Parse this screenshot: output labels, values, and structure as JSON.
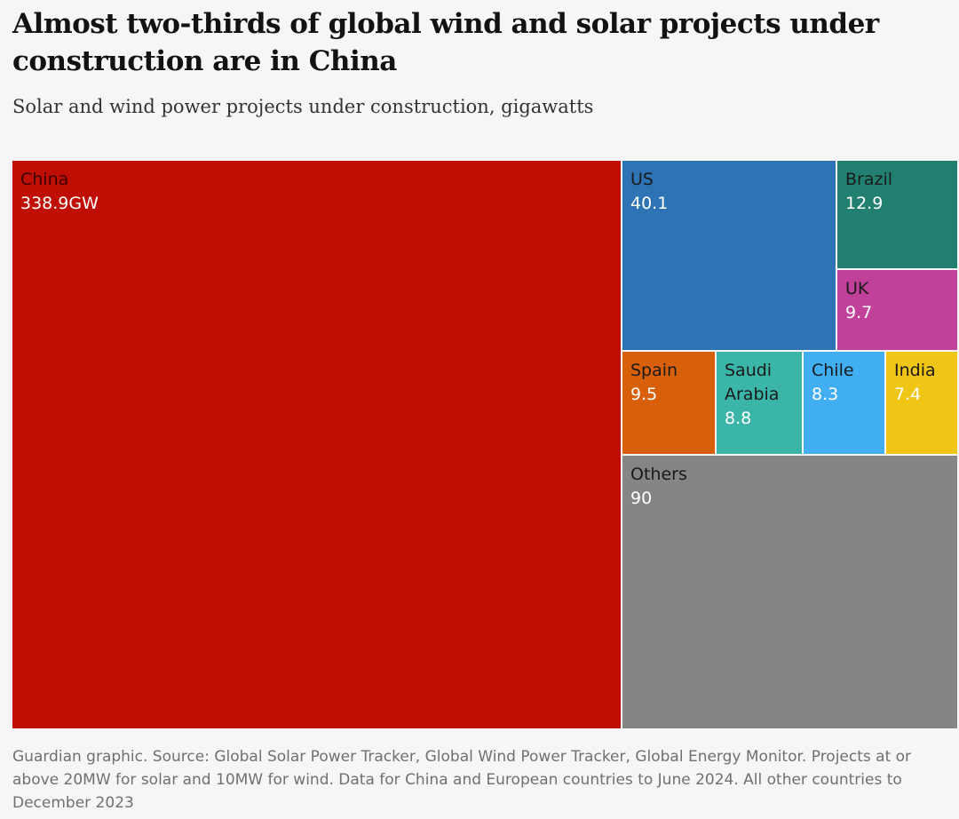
{
  "header": {
    "title": "Almost two-thirds of global wind and solar projects under construction are in China",
    "subtitle": "Solar and wind power projects under construction, gigawatts"
  },
  "chart_data": {
    "type": "treemap",
    "title": "Almost two-thirds of global wind and solar projects under construction are in China",
    "subtitle": "Solar and wind power projects under construction, gigawatts",
    "unit": "GW",
    "tiles": [
      {
        "key": "china",
        "name": "China",
        "value": 338.9,
        "label": "338.9GW",
        "color": "#bf0e03"
      },
      {
        "key": "us",
        "name": "US",
        "value": 40.1,
        "label": "40.1",
        "color": "#2e74b5"
      },
      {
        "key": "brazil",
        "name": "Brazil",
        "value": 12.9,
        "label": "12.9",
        "color": "#21806f"
      },
      {
        "key": "uk",
        "name": "UK",
        "value": 9.7,
        "label": "9.7",
        "color": "#c0409a"
      },
      {
        "key": "spain",
        "name": "Spain",
        "value": 9.5,
        "label": "9.5",
        "color": "#d8600a"
      },
      {
        "key": "saudi-arabia",
        "name": "Saudi Arabia",
        "value": 8.8,
        "label": "8.8",
        "color": "#3bb5a8"
      },
      {
        "key": "chile",
        "name": "Chile",
        "value": 8.3,
        "label": "8.3",
        "color": "#41aef2"
      },
      {
        "key": "india",
        "name": "India",
        "value": 7.4,
        "label": "7.4",
        "color": "#efc516"
      },
      {
        "key": "others",
        "name": "Others",
        "value": 90,
        "label": "90",
        "color": "#858585"
      }
    ]
  },
  "footer": {
    "source": "Guardian graphic. Source: Global Solar Power Tracker, Global Wind Power Tracker, Global Energy Monitor. Projects at or above 20MW for solar and 10MW for wind. Data for China and European countries to June 2024. All other countries to December 2023"
  }
}
